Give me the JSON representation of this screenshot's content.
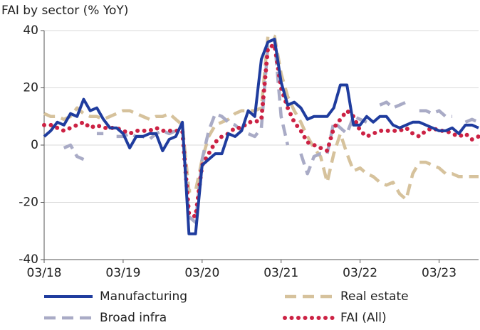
{
  "chart_data": {
    "type": "line",
    "title": "FAI by sector (% YoY)",
    "categories": [
      "03/18",
      null,
      null,
      null,
      null,
      null,
      null,
      null,
      null,
      null,
      null,
      null,
      "03/19",
      null,
      null,
      null,
      null,
      null,
      null,
      null,
      null,
      null,
      null,
      null,
      "03/20",
      null,
      null,
      null,
      null,
      null,
      null,
      null,
      null,
      null,
      null,
      null,
      "03/21",
      null,
      null,
      null,
      null,
      null,
      null,
      null,
      null,
      null,
      null,
      null,
      "03/22",
      null,
      null,
      null,
      null,
      null,
      null,
      null,
      null,
      null,
      null,
      null,
      "03/23",
      null,
      null,
      null,
      null,
      null,
      null
    ],
    "series": [
      {
        "name": "Manufacturing",
        "color": "#1f3c9e",
        "style": "solid",
        "values": [
          3,
          5,
          8,
          7,
          11,
          10,
          16,
          12,
          13,
          9,
          6,
          6,
          4,
          -1,
          3,
          3,
          4,
          4,
          -2,
          2,
          3,
          8,
          -31,
          -31,
          -7,
          -5,
          -3,
          -3,
          4,
          3,
          5,
          12,
          10,
          30,
          36,
          37,
          22,
          14,
          15,
          13,
          9,
          10,
          10,
          10,
          13,
          21,
          21,
          7,
          7,
          10,
          8,
          10,
          10,
          7,
          6,
          7,
          8,
          8,
          7,
          6,
          5,
          5,
          6,
          4,
          7,
          7,
          6
        ]
      },
      {
        "name": "Real estate",
        "color": "#d6c29c",
        "style": "dashed",
        "values": [
          11,
          10,
          10,
          9,
          10,
          13,
          11,
          10,
          10,
          9,
          10,
          11,
          12,
          12,
          11,
          10,
          9,
          10,
          10,
          11,
          9,
          7,
          -16,
          -16,
          -5,
          3,
          7,
          8,
          9,
          11,
          12,
          12,
          12,
          13,
          38,
          38,
          25,
          17,
          12,
          8,
          3,
          -1,
          -4,
          -13,
          -3,
          4,
          -3,
          -9,
          -8,
          -10,
          -11,
          -13,
          -14,
          -13,
          -17,
          -19,
          -10,
          -6,
          -6,
          -7,
          -8,
          -10,
          -10,
          -11,
          -11,
          -11,
          -11
        ]
      },
      {
        "name": "Broad infra",
        "color": "#a9abc6",
        "style": "dashed",
        "values": [
          null,
          null,
          null,
          -1,
          0,
          -4,
          -5,
          null,
          4,
          4,
          null,
          3,
          3,
          4,
          3,
          3,
          2,
          4,
          5,
          4,
          5,
          6,
          -25,
          -27,
          -5,
          5,
          11,
          10,
          8,
          7,
          5,
          4,
          3,
          6,
          35,
          37,
          10,
          0,
          null,
          -3,
          -10,
          -4,
          -3,
          -3,
          8,
          6,
          4,
          10,
          9,
          8,
          null,
          14,
          15,
          13,
          14,
          15,
          null,
          12,
          12,
          11,
          12,
          10,
          10,
          null,
          8,
          9,
          8
        ]
      },
      {
        "name": "FAI (All)",
        "color": "#cc2244",
        "style": "dotted",
        "values": [
          7,
          7,
          6,
          5,
          6,
          7,
          8,
          6,
          7,
          6,
          6,
          6,
          5,
          4,
          5,
          5,
          5,
          6,
          5,
          5,
          5,
          5,
          -24,
          -25,
          -7,
          -3,
          1,
          3,
          4,
          6,
          6,
          8,
          8,
          9,
          34,
          35,
          20,
          13,
          8,
          5,
          1,
          0,
          -1,
          -2,
          6,
          9,
          12,
          10,
          5,
          3,
          4,
          5,
          5,
          5,
          5,
          6,
          4,
          3,
          5,
          6,
          5,
          5,
          4,
          3,
          4,
          2,
          3
        ]
      }
    ],
    "ylim": [
      -40,
      40
    ],
    "yticks": [
      -40,
      -20,
      0,
      20,
      40
    ],
    "grid": true
  }
}
